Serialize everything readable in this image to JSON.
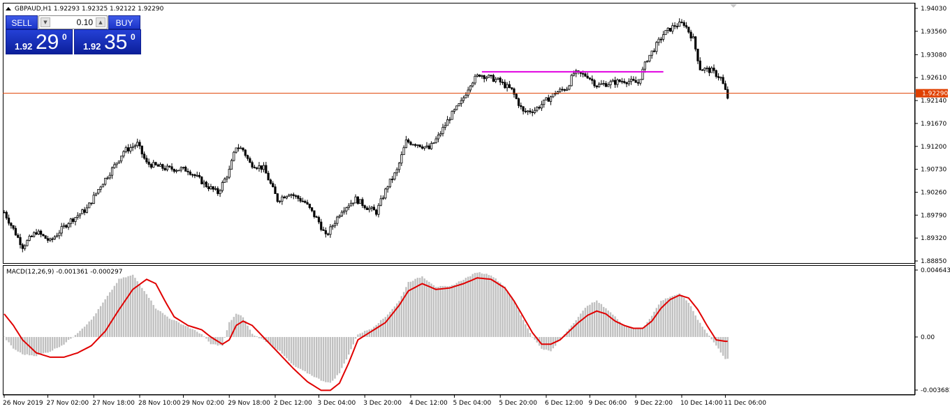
{
  "chart_data": [
    {
      "type": "candlestick",
      "title": "GBPAUD,H1  1.92293 1.92325 1.92122 1.92290",
      "symbol": "GBPAUD",
      "timeframe": "H1",
      "ohlc_last": {
        "open": 1.92293,
        "high": 1.92325,
        "low": 1.92122,
        "close": 1.9229
      },
      "ylim": [
        1.8885,
        1.9403
      ],
      "y_ticks": [
        "1.94030",
        "1.93560",
        "1.93080",
        "1.92610",
        "1.92140",
        "1.91670",
        "1.91200",
        "1.90730",
        "1.90260",
        "1.89790",
        "1.89320",
        "1.88850"
      ],
      "current_price_label": "1.92290",
      "current_price": 1.9229,
      "horizontal_line": {
        "start": 1.9273,
        "end": 1.9273,
        "color": "#e000e0"
      },
      "x_ticks": [
        "26 Nov 2019",
        "27 Nov 02:00",
        "27 Nov 18:00",
        "28 Nov 10:00",
        "29 Nov 02:00",
        "29 Nov 18:00",
        "2 Dec 12:00",
        "3 Dec 04:00",
        "3 Dec 20:00",
        "4 Dec 12:00",
        "5 Dec 04:00",
        "5 Dec 20:00",
        "6 Dec 12:00",
        "9 Dec 06:00",
        "9 Dec 22:00",
        "10 Dec 14:00",
        "11 Dec 06:00"
      ],
      "series": [
        {
          "name": "close",
          "anchors": [
            [
              0,
              1.8985
            ],
            [
              8,
              1.8915
            ],
            [
              14,
              1.8945
            ],
            [
              20,
              1.8925
            ],
            [
              28,
              1.8965
            ],
            [
              36,
              1.8992
            ],
            [
              42,
              1.904
            ],
            [
              48,
              1.908
            ],
            [
              52,
              1.911
            ],
            [
              58,
              1.9125
            ],
            [
              62,
              1.9085
            ],
            [
              70,
              1.9075
            ],
            [
              80,
              1.9072
            ],
            [
              88,
              1.904
            ],
            [
              93,
              1.9025
            ],
            [
              98,
              1.907
            ],
            [
              101,
              1.912
            ],
            [
              104,
              1.9113
            ],
            [
              107,
              1.9085
            ],
            [
              113,
              1.9075
            ],
            [
              119,
              1.901
            ],
            [
              124,
              1.9025
            ],
            [
              131,
              1.9005
            ],
            [
              137,
              1.8965
            ],
            [
              140,
              1.8935
            ],
            [
              143,
              1.8958
            ],
            [
              147,
              1.899
            ],
            [
              153,
              1.9012
            ],
            [
              158,
              1.8995
            ],
            [
              162,
              1.8985
            ],
            [
              167,
              1.904
            ],
            [
              171,
              1.907
            ],
            [
              175,
              1.913
            ],
            [
              180,
              1.9125
            ],
            [
              185,
              1.9115
            ],
            [
              189,
              1.914
            ],
            [
              194,
              1.918
            ],
            [
              199,
              1.921
            ],
            [
              203,
              1.925
            ],
            [
              207,
              1.9268
            ],
            [
              215,
              1.9255
            ],
            [
              221,
              1.9235
            ],
            [
              226,
              1.919
            ],
            [
              231,
              1.9195
            ],
            [
              235,
              1.921
            ],
            [
              240,
              1.923
            ],
            [
              245,
              1.924
            ],
            [
              248,
              1.927
            ],
            [
              254,
              1.9265
            ],
            [
              258,
              1.9245
            ],
            [
              264,
              1.925
            ],
            [
              270,
              1.9255
            ],
            [
              276,
              1.925
            ],
            [
              280,
              1.93
            ],
            [
              283,
              1.932
            ],
            [
              287,
              1.935
            ],
            [
              292,
              1.9368
            ],
            [
              296,
              1.9372
            ],
            [
              300,
              1.934
            ],
            [
              303,
              1.928
            ],
            [
              308,
              1.9275
            ],
            [
              312,
              1.926
            ],
            [
              315,
              1.922
            ]
          ]
        }
      ]
    },
    {
      "type": "bar+line",
      "title": "MACD(12,26,9) -0.001361 -0.000297",
      "macd": -0.001361,
      "signal": -0.000297,
      "ylim": [
        -0.003681,
        0.004643
      ],
      "y_ticks": [
        "0.004643",
        "0.00",
        "-0.003681"
      ],
      "series": [
        {
          "name": "MACD histogram",
          "type": "bar",
          "color": "#c0c0c0",
          "anchors": [
            [
              0,
              0.0
            ],
            [
              4,
              -0.0008
            ],
            [
              8,
              -0.0012
            ],
            [
              14,
              -0.0013
            ],
            [
              20,
              -0.001
            ],
            [
              26,
              -0.0005
            ],
            [
              32,
              0.0003
            ],
            [
              38,
              0.0012
            ],
            [
              44,
              0.0026
            ],
            [
              50,
              0.004
            ],
            [
              56,
              0.0043
            ],
            [
              62,
              0.003
            ],
            [
              66,
              0.002
            ],
            [
              72,
              0.0013
            ],
            [
              80,
              0.0007
            ],
            [
              86,
              0.0002
            ],
            [
              90,
              -0.0005
            ],
            [
              95,
              -0.0006
            ],
            [
              98,
              0.001
            ],
            [
              101,
              0.0016
            ],
            [
              104,
              0.0014
            ],
            [
              108,
              0.0002
            ],
            [
              114,
              -0.0003
            ],
            [
              120,
              -0.001
            ],
            [
              126,
              -0.002
            ],
            [
              132,
              -0.0025
            ],
            [
              138,
              -0.003
            ],
            [
              142,
              -0.0032
            ],
            [
              146,
              -0.0025
            ],
            [
              150,
              -0.0012
            ],
            [
              154,
              0.0002
            ],
            [
              160,
              0.0006
            ],
            [
              166,
              0.0014
            ],
            [
              172,
              0.0025
            ],
            [
              176,
              0.0038
            ],
            [
              182,
              0.0042
            ],
            [
              188,
              0.0035
            ],
            [
              194,
              0.0035
            ],
            [
              200,
              0.004
            ],
            [
              206,
              0.0045
            ],
            [
              212,
              0.0043
            ],
            [
              218,
              0.0035
            ],
            [
              222,
              0.0025
            ],
            [
              226,
              0.0012
            ],
            [
              230,
              0.0
            ],
            [
              234,
              -0.0008
            ],
            [
              238,
              -0.001
            ],
            [
              242,
              -0.0002
            ],
            [
              246,
              0.0006
            ],
            [
              250,
              0.0014
            ],
            [
              254,
              0.0022
            ],
            [
              258,
              0.0025
            ],
            [
              262,
              0.002
            ],
            [
              266,
              0.0014
            ],
            [
              270,
              0.0008
            ],
            [
              274,
              0.0006
            ],
            [
              278,
              0.0006
            ],
            [
              282,
              0.0015
            ],
            [
              286,
              0.0025
            ],
            [
              290,
              0.0028
            ],
            [
              294,
              0.003
            ],
            [
              298,
              0.0024
            ],
            [
              302,
              0.0012
            ],
            [
              306,
              0.0003
            ],
            [
              310,
              -0.0006
            ],
            [
              314,
              -0.0015
            ]
          ]
        },
        {
          "name": "Signal",
          "type": "line",
          "color": "#e00000",
          "anchors": [
            [
              0,
              0.0016
            ],
            [
              4,
              0.0008
            ],
            [
              8,
              -0.0002
            ],
            [
              14,
              -0.0011
            ],
            [
              20,
              -0.0014
            ],
            [
              26,
              -0.0014
            ],
            [
              32,
              -0.0011
            ],
            [
              38,
              -0.0006
            ],
            [
              44,
              0.0004
            ],
            [
              50,
              0.0019
            ],
            [
              56,
              0.0033
            ],
            [
              62,
              0.004
            ],
            [
              66,
              0.0037
            ],
            [
              70,
              0.0025
            ],
            [
              74,
              0.0014
            ],
            [
              80,
              0.0008
            ],
            [
              86,
              0.0005
            ],
            [
              90,
              0.0
            ],
            [
              95,
              -0.0005
            ],
            [
              98,
              -0.0002
            ],
            [
              101,
              0.0008
            ],
            [
              104,
              0.0011
            ],
            [
              108,
              0.0008
            ],
            [
              114,
              -0.0002
            ],
            [
              120,
              -0.0012
            ],
            [
              126,
              -0.0022
            ],
            [
              132,
              -0.0031
            ],
            [
              138,
              -0.0037
            ],
            [
              142,
              -0.0037
            ],
            [
              146,
              -0.0032
            ],
            [
              150,
              -0.0018
            ],
            [
              154,
              -0.0002
            ],
            [
              160,
              0.0004
            ],
            [
              166,
              0.001
            ],
            [
              172,
              0.0022
            ],
            [
              176,
              0.0032
            ],
            [
              182,
              0.0037
            ],
            [
              188,
              0.0033
            ],
            [
              194,
              0.0034
            ],
            [
              200,
              0.0037
            ],
            [
              206,
              0.0041
            ],
            [
              212,
              0.004
            ],
            [
              218,
              0.0034
            ],
            [
              222,
              0.0025
            ],
            [
              226,
              0.0014
            ],
            [
              230,
              0.0003
            ],
            [
              234,
              -0.0005
            ],
            [
              238,
              -0.0005
            ],
            [
              242,
              -0.0002
            ],
            [
              246,
              0.0004
            ],
            [
              250,
              0.001
            ],
            [
              254,
              0.0015
            ],
            [
              258,
              0.0018
            ],
            [
              262,
              0.0016
            ],
            [
              266,
              0.0011
            ],
            [
              270,
              0.0008
            ],
            [
              274,
              0.0006
            ],
            [
              278,
              0.0006
            ],
            [
              282,
              0.0011
            ],
            [
              286,
              0.002
            ],
            [
              290,
              0.0026
            ],
            [
              294,
              0.0029
            ],
            [
              298,
              0.0027
            ],
            [
              302,
              0.0019
            ],
            [
              306,
              0.0008
            ],
            [
              310,
              -0.0002
            ],
            [
              314,
              -0.0003
            ]
          ]
        }
      ]
    }
  ],
  "trade_panel": {
    "sell_label": "SELL",
    "buy_label": "BUY",
    "lot": "0.10",
    "sell_price_small": "1.92",
    "sell_price_big": "29",
    "sell_price_sup": "0",
    "buy_price_small": "1.92",
    "buy_price_big": "35",
    "buy_price_sup": "0",
    "colors": {
      "button": "#1b35c8"
    }
  },
  "colors": {
    "bid_line": "#e04000",
    "macd_signal": "#e00000",
    "histogram": "#c0c0c0",
    "level_line": "#e000e0"
  }
}
